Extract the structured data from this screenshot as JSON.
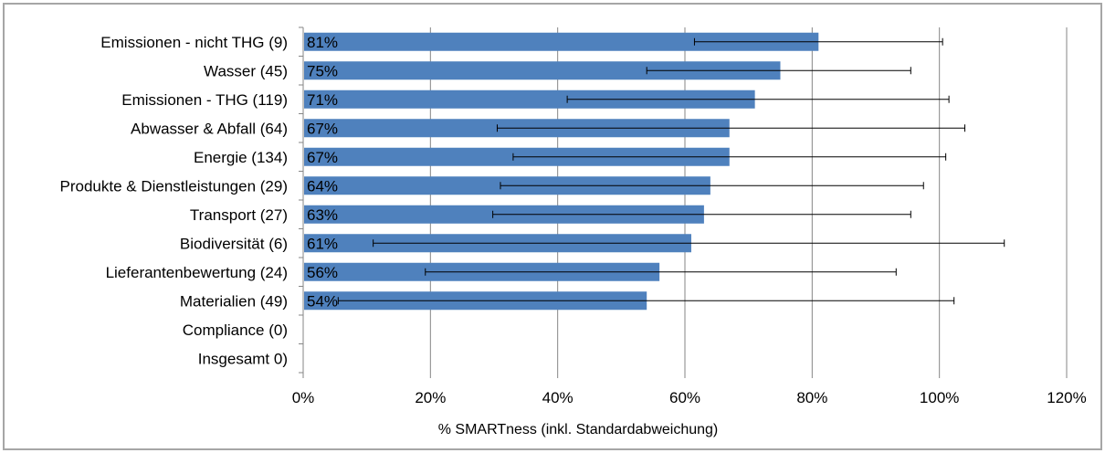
{
  "chart_data": {
    "type": "bar",
    "orientation": "horizontal",
    "title": "",
    "xlabel": "% SMARTness (inkl. Standardabweichung)",
    "ylabel": "",
    "xlim": [
      0,
      120
    ],
    "x_ticks": [
      0,
      20,
      40,
      60,
      80,
      100,
      120
    ],
    "x_tick_labels": [
      "0%",
      "20%",
      "40%",
      "60%",
      "80%",
      "100%",
      "120%"
    ],
    "grid": "vertical major gridlines",
    "legend": "none",
    "bar_color": "#4f81bd",
    "categories": [
      "Emissionen - nicht THG (9)",
      "Wasser (45)",
      "Emissionen - THG (119)",
      "Abwasser & Abfall (64)",
      "Energie (134)",
      "Produkte & Dienstleistungen (29)",
      "Transport (27)",
      "Biodiversität (6)",
      "Lieferantenbewertung (24)",
      "Materialien (49)",
      "Compliance (0)",
      "Insgesamt 0)"
    ],
    "values": [
      81,
      75,
      71,
      67,
      67,
      64,
      63,
      61,
      56,
      54,
      null,
      null
    ],
    "data_labels": [
      "81%",
      "75%",
      "71%",
      "67%",
      "67%",
      "64%",
      "63%",
      "61%",
      "56%",
      "54%",
      "",
      ""
    ],
    "error_low": [
      61.5,
      54,
      41.5,
      30.5,
      33,
      31,
      29.8,
      11,
      19.2,
      5.5,
      null,
      null
    ],
    "error_high": [
      100.5,
      95.5,
      101.5,
      104,
      101,
      97.5,
      95.5,
      110.2,
      93.2,
      102.3,
      null,
      null
    ]
  }
}
